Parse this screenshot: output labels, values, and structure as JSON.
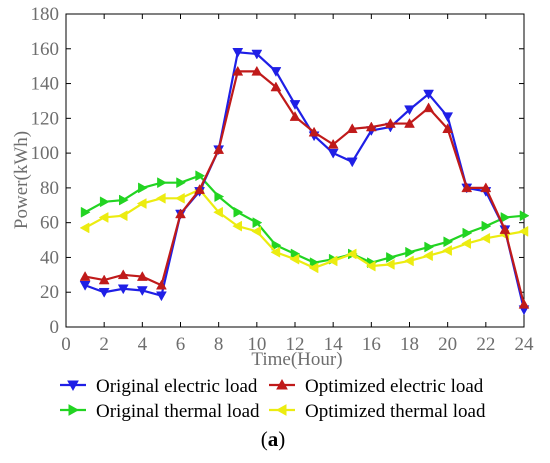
{
  "chart_data": {
    "type": "line",
    "x": [
      1,
      2,
      3,
      4,
      5,
      6,
      7,
      8,
      9,
      10,
      11,
      12,
      13,
      14,
      15,
      16,
      17,
      18,
      19,
      20,
      21,
      22,
      23,
      24
    ],
    "series": [
      {
        "name": "Original electric load",
        "color": "#1f1fe6",
        "marker": "triangle-down",
        "values": [
          24,
          20,
          22,
          21,
          18,
          65,
          78,
          102,
          158,
          157,
          147,
          128,
          110,
          100,
          95,
          113,
          115,
          125,
          134,
          121,
          80,
          78,
          56,
          10
        ]
      },
      {
        "name": "Optimized electric load",
        "color": "#c01a1a",
        "marker": "triangle-up",
        "values": [
          29,
          27,
          30,
          29,
          24,
          65,
          79,
          102,
          147,
          147,
          138,
          121,
          112,
          105,
          114,
          115,
          117,
          117,
          126,
          114,
          80,
          80,
          56,
          13
        ]
      },
      {
        "name": "Original thermal load",
        "color": "#22d422",
        "marker": "triangle-right",
        "values": [
          66,
          72,
          73,
          80,
          83,
          83,
          87,
          75,
          66,
          60,
          47,
          42,
          37,
          39,
          42,
          37,
          40,
          43,
          46,
          49,
          54,
          58,
          63,
          64
        ]
      },
      {
        "name": "Optimized thermal load",
        "color": "#ecec10",
        "marker": "triangle-left",
        "values": [
          57,
          63,
          64,
          71,
          74,
          74,
          79,
          66,
          58,
          55,
          43,
          39,
          34,
          38,
          42,
          35,
          36,
          38,
          41,
          44,
          48,
          51,
          53,
          55
        ]
      }
    ],
    "xlabel": "Time(Hour)",
    "ylabel": "Power(kWh)",
    "xlim": [
      0,
      24
    ],
    "ylim": [
      0,
      180
    ],
    "xticks": [
      0,
      2,
      4,
      6,
      8,
      10,
      12,
      14,
      16,
      18,
      20,
      22,
      24
    ],
    "yticks": [
      0,
      20,
      40,
      60,
      80,
      100,
      120,
      140,
      160,
      180
    ],
    "grid": false,
    "legend_position": "bottom",
    "caption_open": "(",
    "caption_letter": "a",
    "caption_close": ")"
  }
}
